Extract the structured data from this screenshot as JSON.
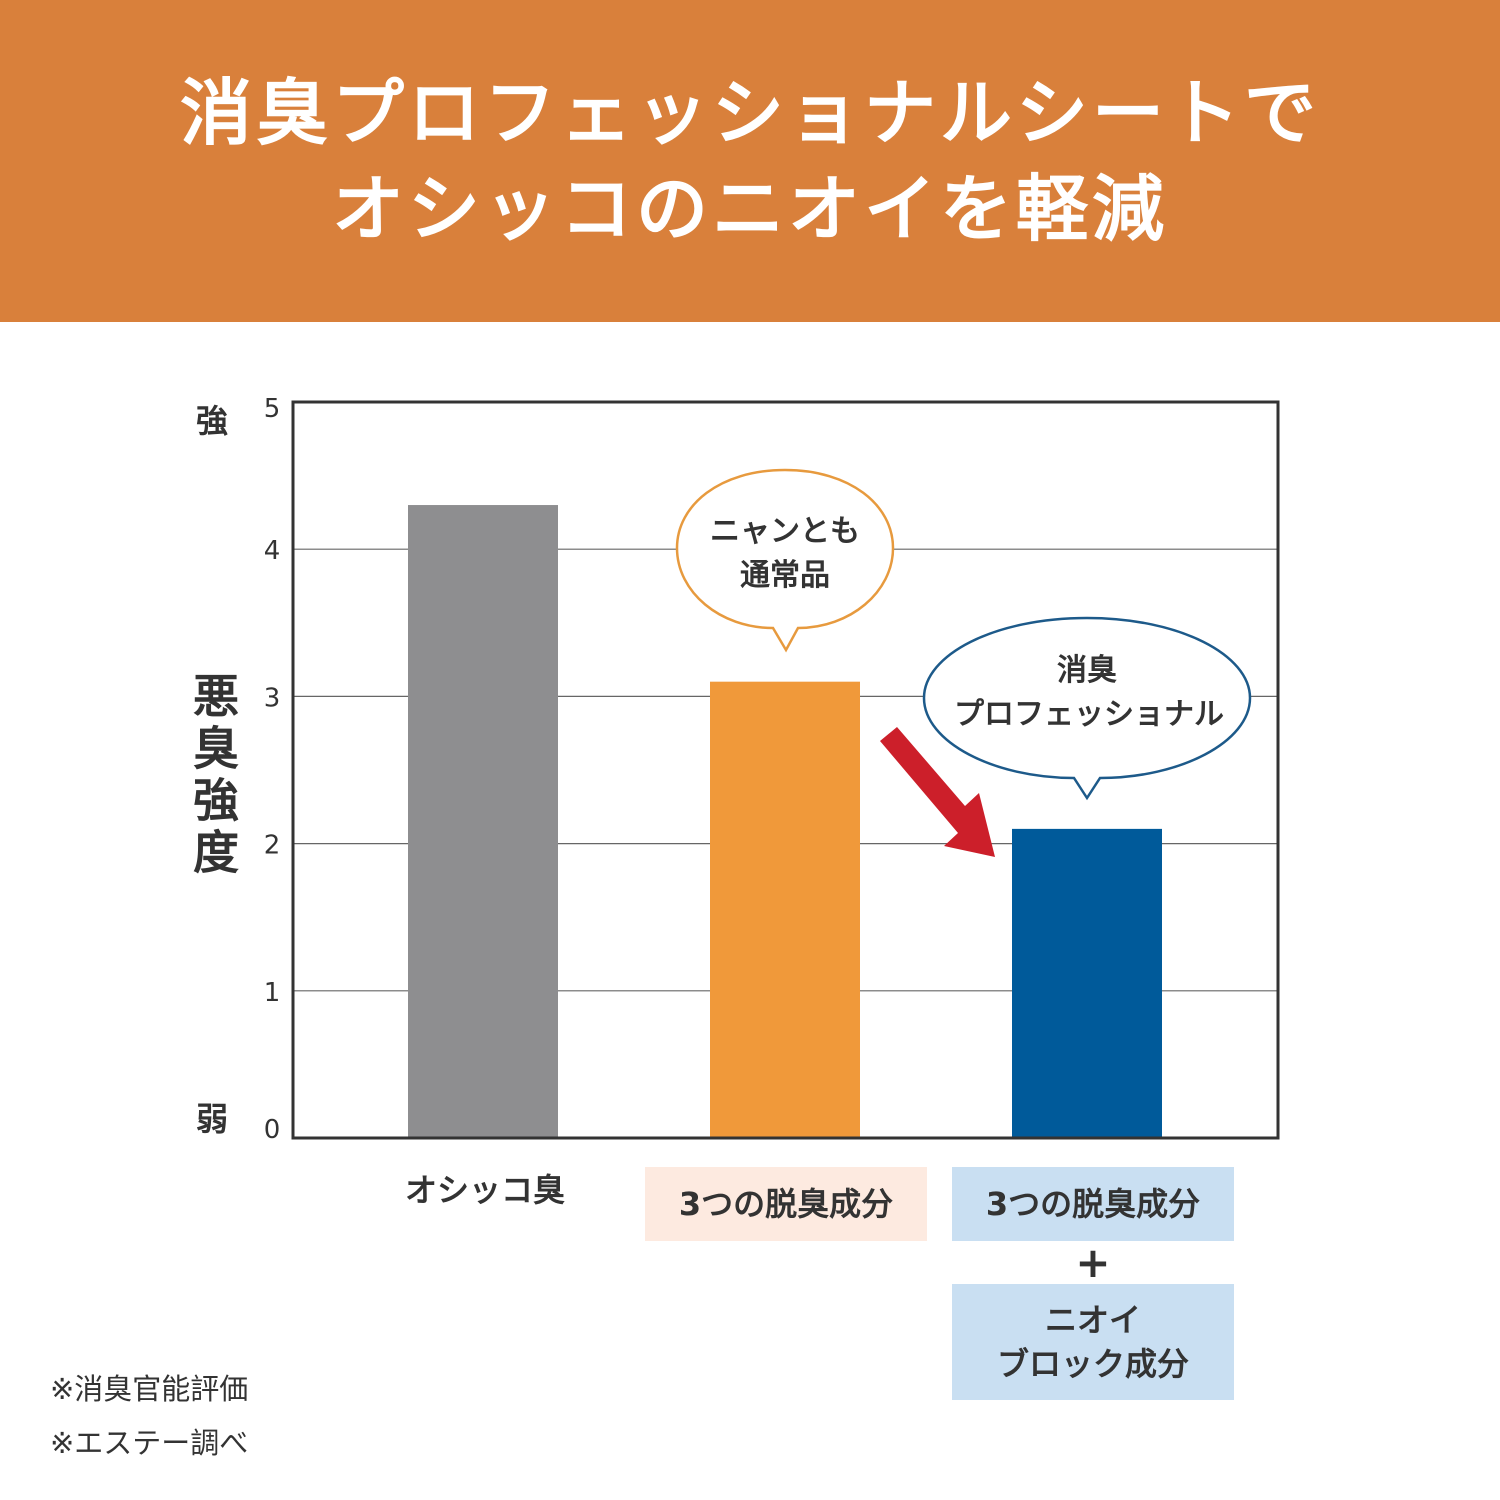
{
  "header": {
    "line1": "消臭プロフェッショナルシートで",
    "line2": "オシッコのニオイを軽減"
  },
  "colors": {
    "header": "#d9803b",
    "gray": "#8e8e90",
    "orange": "#f0993a",
    "blue": "#005a9a",
    "arrow": "#cc1f2a",
    "label_peach": "#fdeae0",
    "label_blue": "#c9dff2"
  },
  "chart_data": {
    "type": "bar",
    "ylabel": "悪臭強度",
    "y_top_label": "強",
    "y_bottom_label": "弱",
    "ylim": [
      0,
      5
    ],
    "yticks": [
      "0",
      "1",
      "2",
      "3",
      "4",
      "5"
    ],
    "grid": true,
    "categories": [
      "オシッコ臭",
      "3つの脱臭成分",
      "3つの脱臭成分 + ニオイブロック成分"
    ],
    "values": [
      4.3,
      3.1,
      2.1
    ],
    "bar_colors": [
      "#8e8e90",
      "#f0993a",
      "#005a9a"
    ],
    "callouts": [
      {
        "line1": "ニャンとも",
        "line2": "通常品"
      },
      {
        "line1": "消臭",
        "line2": "プロフェッショナル"
      }
    ]
  },
  "labels": {
    "cat1": "オシッコ臭",
    "cat2": "3つの脱臭成分",
    "cat3a": "3つの脱臭成分",
    "plus": "+",
    "cat3b_1": "ニオイ",
    "cat3b_2": "ブロック成分"
  },
  "notes": [
    "※消臭官能評価",
    "※エステー調べ"
  ]
}
